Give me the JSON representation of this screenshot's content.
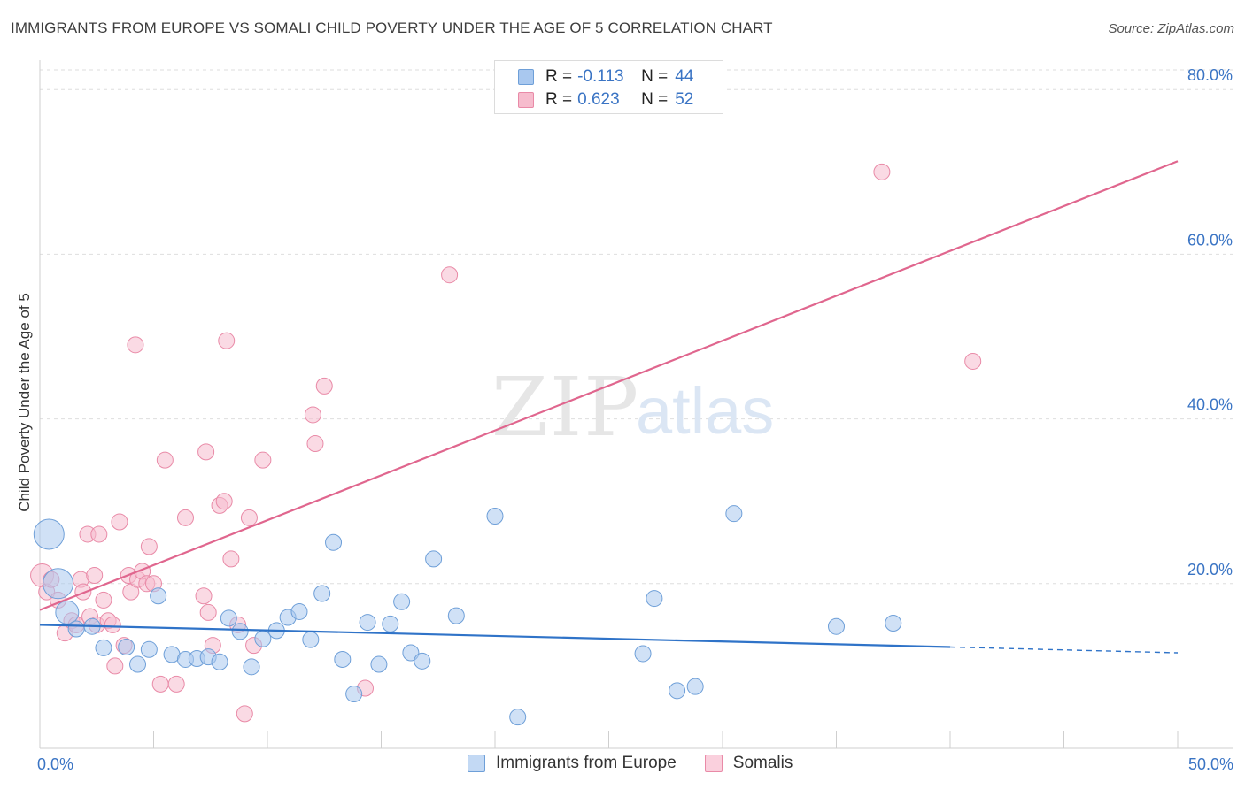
{
  "title": "IMMIGRANTS FROM EUROPE VS SOMALI CHILD POVERTY UNDER THE AGE OF 5 CORRELATION CHART",
  "source": "Source: ZipAtlas.com",
  "watermark": {
    "zip": "ZIP",
    "atlas": "atlas"
  },
  "legend_top": [
    {
      "r_label": "R =",
      "r_value": "-0.113",
      "n_label": "N =",
      "n_value": "44",
      "series": "Immigrants from Europe"
    },
    {
      "r_label": "R =",
      "r_value": "0.623",
      "n_label": "N =",
      "n_value": "52",
      "series": "Somalis"
    }
  ],
  "legend_bottom": [
    {
      "label": "Immigrants from Europe"
    },
    {
      "label": "Somalis"
    }
  ],
  "colors": {
    "blue_fill": "#a9c8ef",
    "blue_stroke": "#6e9fd8",
    "blue_line": "#2f73c8",
    "pink_fill": "#f6bccd",
    "pink_stroke": "#e98aa7",
    "pink_line": "#e0668e",
    "grid": "#dedede",
    "axis_text": "#3a74c4"
  },
  "chart_data": {
    "type": "scatter",
    "title": "IMMIGRANTS FROM EUROPE VS SOMALI CHILD POVERTY UNDER THE AGE OF 5 CORRELATION CHART",
    "xlabel": "",
    "ylabel": "Child Poverty Under the Age of 5",
    "xlim": [
      0,
      50
    ],
    "ylim": [
      0,
      84
    ],
    "x_tick_labels": [
      {
        "value": 0,
        "label": "0.0%"
      },
      {
        "value": 50,
        "label": "50.0%"
      }
    ],
    "y_tick_labels": [
      {
        "value": 20,
        "label": "20.0%"
      },
      {
        "value": 40,
        "label": "40.0%"
      },
      {
        "value": 60,
        "label": "60.0%"
      },
      {
        "value": 80,
        "label": "80.0%"
      }
    ],
    "grid": true,
    "series": [
      {
        "name": "Immigrants from Europe",
        "color": "#a9c8ef",
        "r": -0.113,
        "n": 44,
        "trend": {
          "x0": 0,
          "y0": 15.0,
          "x1": 40,
          "y1": 12.3,
          "dashed_to_x": 50,
          "dashed_to_y": 11.6
        },
        "points": [
          [
            0.4,
            26,
            3
          ],
          [
            0.8,
            20,
            3
          ],
          [
            1.2,
            16.5,
            2
          ],
          [
            1.6,
            14.5,
            1
          ],
          [
            2.3,
            14.8,
            1
          ],
          [
            2.8,
            12.2,
            1
          ],
          [
            3.8,
            12.3,
            1
          ],
          [
            4.3,
            10.2,
            1
          ],
          [
            4.8,
            12.0,
            1
          ],
          [
            5.2,
            18.5,
            1
          ],
          [
            5.8,
            11.4,
            1
          ],
          [
            6.4,
            10.8,
            1
          ],
          [
            6.9,
            10.9,
            1
          ],
          [
            7.4,
            11.1,
            1
          ],
          [
            7.9,
            10.5,
            1
          ],
          [
            8.3,
            15.8,
            1
          ],
          [
            8.8,
            14.2,
            1
          ],
          [
            9.3,
            9.9,
            1
          ],
          [
            9.8,
            13.3,
            1
          ],
          [
            10.4,
            14.3,
            1
          ],
          [
            10.9,
            15.9,
            1
          ],
          [
            11.4,
            16.6,
            1
          ],
          [
            11.9,
            13.2,
            1
          ],
          [
            12.4,
            18.8,
            1
          ],
          [
            12.9,
            25.0,
            1
          ],
          [
            13.3,
            10.8,
            1
          ],
          [
            13.8,
            6.6,
            1
          ],
          [
            14.4,
            15.3,
            1
          ],
          [
            14.9,
            10.2,
            1
          ],
          [
            15.4,
            15.1,
            1
          ],
          [
            15.9,
            17.8,
            1
          ],
          [
            16.3,
            11.6,
            1
          ],
          [
            16.8,
            10.6,
            1
          ],
          [
            17.3,
            23.0,
            1
          ],
          [
            18.3,
            16.1,
            1
          ],
          [
            20.0,
            28.2,
            1
          ],
          [
            21.0,
            3.8,
            1
          ],
          [
            26.5,
            11.5,
            1
          ],
          [
            27.0,
            18.2,
            1
          ],
          [
            28.0,
            7.0,
            1
          ],
          [
            28.8,
            7.5,
            1
          ],
          [
            30.5,
            28.5,
            1
          ],
          [
            35.0,
            14.8,
            1
          ],
          [
            37.5,
            15.2,
            1
          ]
        ]
      },
      {
        "name": "Somalis",
        "color": "#f6bccd",
        "r": 0.623,
        "n": 52,
        "trend": {
          "x0": 0,
          "y0": 16.8,
          "x1": 50,
          "y1": 71.3
        },
        "points": [
          [
            0.1,
            21.0,
            2
          ],
          [
            0.3,
            19.0,
            1
          ],
          [
            0.5,
            20.5,
            1
          ],
          [
            0.8,
            18.0,
            1
          ],
          [
            1.1,
            14.0,
            1
          ],
          [
            1.4,
            15.5,
            1
          ],
          [
            1.6,
            15.0,
            1
          ],
          [
            1.8,
            20.5,
            1
          ],
          [
            1.9,
            19.0,
            1
          ],
          [
            2.1,
            26.0,
            1
          ],
          [
            2.2,
            16.0,
            1
          ],
          [
            2.4,
            21.0,
            1
          ],
          [
            2.5,
            15.0,
            1
          ],
          [
            2.6,
            26.0,
            1
          ],
          [
            2.8,
            18.0,
            1
          ],
          [
            3.0,
            15.5,
            1
          ],
          [
            3.2,
            15.0,
            1
          ],
          [
            3.3,
            10.0,
            1
          ],
          [
            3.5,
            27.5,
            1
          ],
          [
            3.7,
            12.5,
            1
          ],
          [
            3.9,
            21.0,
            1
          ],
          [
            4.0,
            19.0,
            1
          ],
          [
            4.2,
            49.0,
            1
          ],
          [
            4.3,
            20.5,
            1
          ],
          [
            4.5,
            21.5,
            1
          ],
          [
            4.7,
            20.0,
            1
          ],
          [
            4.8,
            24.5,
            1
          ],
          [
            5.0,
            20.0,
            1
          ],
          [
            5.3,
            7.8,
            1
          ],
          [
            5.5,
            35.0,
            1
          ],
          [
            6.0,
            7.8,
            1
          ],
          [
            6.4,
            28.0,
            1
          ],
          [
            7.2,
            18.5,
            1
          ],
          [
            7.3,
            36.0,
            1
          ],
          [
            7.4,
            16.5,
            1
          ],
          [
            7.6,
            12.5,
            1
          ],
          [
            7.9,
            29.5,
            1
          ],
          [
            8.1,
            30.0,
            1
          ],
          [
            8.2,
            49.5,
            1
          ],
          [
            8.4,
            23.0,
            1
          ],
          [
            8.7,
            15.0,
            1
          ],
          [
            9.0,
            4.2,
            1
          ],
          [
            9.2,
            28.0,
            1
          ],
          [
            9.4,
            12.5,
            1
          ],
          [
            9.8,
            35.0,
            1
          ],
          [
            12.0,
            40.5,
            1
          ],
          [
            12.1,
            37.0,
            1
          ],
          [
            12.5,
            44.0,
            1
          ],
          [
            14.3,
            7.3,
            1
          ],
          [
            18.0,
            57.5,
            1
          ],
          [
            37.0,
            70.0,
            1
          ],
          [
            41.0,
            47.0,
            1
          ]
        ]
      }
    ]
  }
}
